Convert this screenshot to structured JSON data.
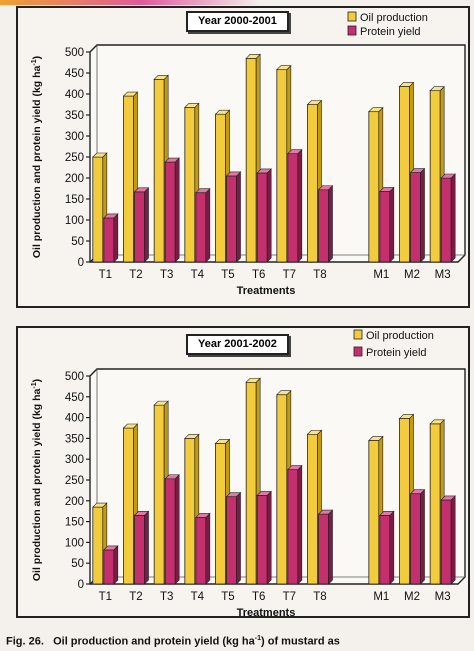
{
  "caption": {
    "prefix": "Fig. 26.",
    "text_before_sup": "Oil production and protein yield (kg ha",
    "sup": "-1",
    "text_after_sup": ") of mustard as"
  },
  "colors": {
    "oil_front": "#f2cc3c",
    "oil_side": "#c49a14",
    "oil_top": "#f8e28a",
    "protein_front": "#c4306e",
    "protein_side": "#7d1b46",
    "protein_top": "#e07aa4"
  },
  "chart_data": [
    {
      "type": "bar",
      "title": "Year 2000-2001",
      "xlabel": "Treatments",
      "ylabel": "Oil production and protein yield (kg ha",
      "ylabel_sup": "-1",
      "ylabel_suffix": ")",
      "ylim": [
        0,
        500
      ],
      "yticks": [
        0,
        50,
        100,
        150,
        200,
        250,
        300,
        350,
        400,
        450,
        500
      ],
      "grid": false,
      "legend_position": "top-right",
      "categories": [
        "T1",
        "T2",
        "T3",
        "T4",
        "T5",
        "T6",
        "T7",
        "T8",
        "",
        "M1",
        "M2",
        "M3"
      ],
      "series": [
        {
          "name": "Oil production",
          "values": [
            250,
            395,
            435,
            368,
            352,
            485,
            458,
            375,
            null,
            358,
            418,
            408
          ]
        },
        {
          "name": "Protein yield",
          "values": [
            105,
            167,
            238,
            165,
            205,
            212,
            258,
            172,
            null,
            168,
            213,
            200
          ]
        }
      ]
    },
    {
      "type": "bar",
      "title": "Year 2001-2002",
      "xlabel": "Treatments",
      "ylabel": "Oil production and protein yield (kg ha",
      "ylabel_sup": "-1",
      "ylabel_suffix": ")",
      "ylim": [
        0,
        500
      ],
      "yticks": [
        0,
        50,
        100,
        150,
        200,
        250,
        300,
        350,
        400,
        450,
        500
      ],
      "grid": false,
      "legend_position": "top-right",
      "categories": [
        "T1",
        "T2",
        "T3",
        "T4",
        "T5",
        "T6",
        "T7",
        "T8",
        "",
        "M1",
        "M2",
        "M3"
      ],
      "series": [
        {
          "name": "Oil production",
          "values": [
            185,
            375,
            430,
            350,
            338,
            485,
            455,
            360,
            null,
            345,
            398,
            385
          ]
        },
        {
          "name": "Protein yield",
          "values": [
            82,
            165,
            253,
            160,
            210,
            213,
            275,
            168,
            null,
            165,
            217,
            202
          ]
        }
      ]
    }
  ]
}
